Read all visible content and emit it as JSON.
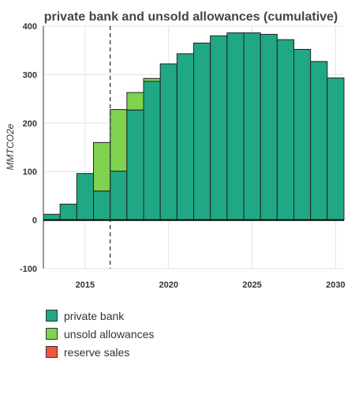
{
  "chart_data": {
    "type": "bar",
    "stacked": true,
    "title": "private bank and unsold allowances (cumulative)",
    "ylabel": "MMTCO2e",
    "xlabel": "",
    "ylim": [
      -100,
      400
    ],
    "xlim": [
      2012.5,
      2030.5
    ],
    "yticks": [
      -100,
      0,
      100,
      200,
      300,
      400
    ],
    "xticks": [
      2015,
      2020,
      2025,
      2030
    ],
    "grid": true,
    "legend_position": "bottom-left",
    "vertical_line_x": 2016.5,
    "x": [
      2013,
      2014,
      2015,
      2016,
      2017,
      2018,
      2019,
      2020,
      2021,
      2022,
      2023,
      2024,
      2025,
      2026,
      2027,
      2028,
      2029,
      2030
    ],
    "series": [
      {
        "name": "private bank",
        "color": "#20a784",
        "values": [
          12,
          33,
          96,
          60,
          101,
          227,
          286,
          322,
          343,
          365,
          380,
          386,
          386,
          383,
          372,
          352,
          327,
          293
        ]
      },
      {
        "name": "unsold allowances",
        "color": "#7ed24f",
        "values": [
          0,
          0,
          0,
          100,
          127,
          36,
          6,
          0,
          0,
          0,
          0,
          0,
          0,
          0,
          0,
          0,
          0,
          0
        ]
      },
      {
        "name": "reserve sales",
        "color": "#f2553d",
        "values": [
          0,
          0,
          0,
          0,
          0,
          0,
          0,
          0,
          0,
          0,
          0,
          0,
          0,
          0,
          0,
          0,
          0,
          0
        ]
      }
    ]
  }
}
